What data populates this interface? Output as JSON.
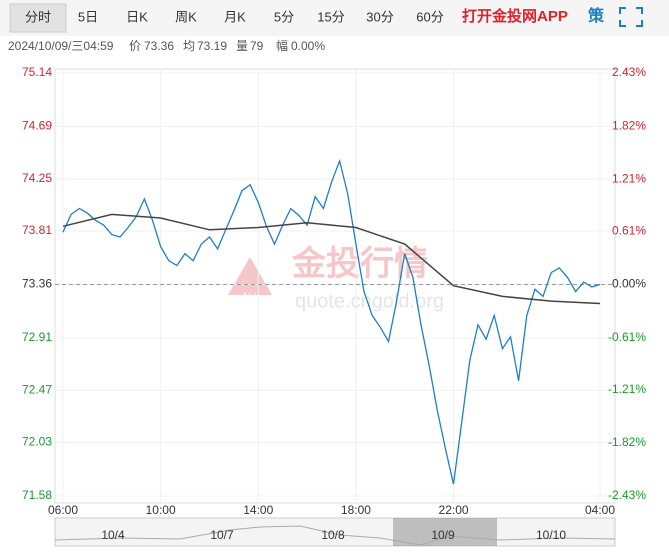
{
  "tabs": [
    "分时",
    "5日",
    "日K",
    "周K",
    "月K",
    "5分",
    "15分",
    "30分",
    "60分"
  ],
  "app_link": "打开金投网APP",
  "strategy": "策",
  "info": {
    "datetime": "2024/10/09/三04:59",
    "price_label": "价",
    "price": "73.36",
    "avg_label": "均",
    "avg": "73.19",
    "volume_label": "量",
    "volume": "79",
    "change_label": "幅",
    "change": "0.00%"
  },
  "watermark": {
    "name": "金投行情",
    "url": "quote.cngold.org",
    "logo": "AU"
  },
  "navigator": {
    "labels": [
      "10/4",
      "10/7",
      "10/8",
      "10/9",
      "10/10"
    ]
  },
  "chart_data": {
    "type": "line",
    "x": [
      "06:00",
      "06:20",
      "06:40",
      "07:00",
      "07:20",
      "07:40",
      "08:00",
      "08:20",
      "08:40",
      "09:00",
      "09:20",
      "09:40",
      "10:00",
      "10:20",
      "10:40",
      "11:00",
      "11:20",
      "11:40",
      "12:00",
      "12:20",
      "12:40",
      "13:00",
      "13:20",
      "13:40",
      "14:00",
      "14:20",
      "14:40",
      "15:00",
      "15:20",
      "15:40",
      "16:00",
      "16:20",
      "16:40",
      "17:00",
      "17:20",
      "17:40",
      "18:00",
      "18:20",
      "18:40",
      "19:00",
      "19:20",
      "19:40",
      "20:00",
      "20:20",
      "20:40",
      "21:00",
      "21:20",
      "21:40",
      "22:00",
      "22:20",
      "22:40",
      "23:00",
      "23:20",
      "23:40",
      "00:00",
      "00:20",
      "00:40",
      "01:00",
      "01:20",
      "01:40",
      "02:00",
      "02:20",
      "02:40",
      "03:00",
      "03:20",
      "03:40",
      "04:00"
    ],
    "series": [
      {
        "name": "价",
        "color": "#1f7fc4",
        "values": [
          73.8,
          73.95,
          74.0,
          73.96,
          73.9,
          73.86,
          73.78,
          73.76,
          73.84,
          73.93,
          74.08,
          73.9,
          73.68,
          73.56,
          73.52,
          73.62,
          73.56,
          73.7,
          73.76,
          73.66,
          73.82,
          73.98,
          74.15,
          74.2,
          74.05,
          73.85,
          73.7,
          73.86,
          74.0,
          73.94,
          73.86,
          74.1,
          74.0,
          74.22,
          74.4,
          74.12,
          73.7,
          73.3,
          73.1,
          73.0,
          72.88,
          73.22,
          73.62,
          73.42,
          73.02,
          72.68,
          72.3,
          71.98,
          71.68,
          72.2,
          72.72,
          73.02,
          72.9,
          73.1,
          72.82,
          72.92,
          72.55,
          73.1,
          73.32,
          73.26,
          73.46,
          73.5,
          73.42,
          73.3,
          73.38,
          73.34,
          73.36
        ]
      },
      {
        "name": "均",
        "color": "#444444",
        "x": [
          "06:00",
          "08:00",
          "10:00",
          "12:00",
          "14:00",
          "16:00",
          "18:00",
          "20:00",
          "22:00",
          "00:00",
          "02:00",
          "04:00"
        ],
        "values": [
          73.85,
          73.95,
          73.92,
          73.82,
          73.84,
          73.88,
          73.84,
          73.7,
          73.35,
          73.26,
          73.22,
          73.2
        ]
      }
    ],
    "ylim": [
      71.58,
      75.14
    ],
    "yticks": [
      71.58,
      72.03,
      72.47,
      72.91,
      73.36,
      73.81,
      74.25,
      74.69,
      75.14
    ],
    "y2lim": [
      -2.43,
      2.43
    ],
    "y2ticks": [
      {
        "value": -2.43,
        "label": "-2.43%"
      },
      {
        "value": -1.82,
        "label": "-1.82%"
      },
      {
        "value": -1.21,
        "label": "-1.21%"
      },
      {
        "value": -0.61,
        "label": "-0.61%"
      },
      {
        "value": 0,
        "label": "0.00%"
      },
      {
        "value": 0.61,
        "label": "0.61%"
      },
      {
        "value": 1.21,
        "label": "1.21%"
      },
      {
        "value": 1.82,
        "label": "1.82%"
      },
      {
        "value": 2.43,
        "label": "2.43%"
      }
    ],
    "xticks": [
      "06:00",
      "10:00",
      "14:00",
      "18:00",
      "22:00",
      "04:00"
    ],
    "reference": 73.36
  }
}
